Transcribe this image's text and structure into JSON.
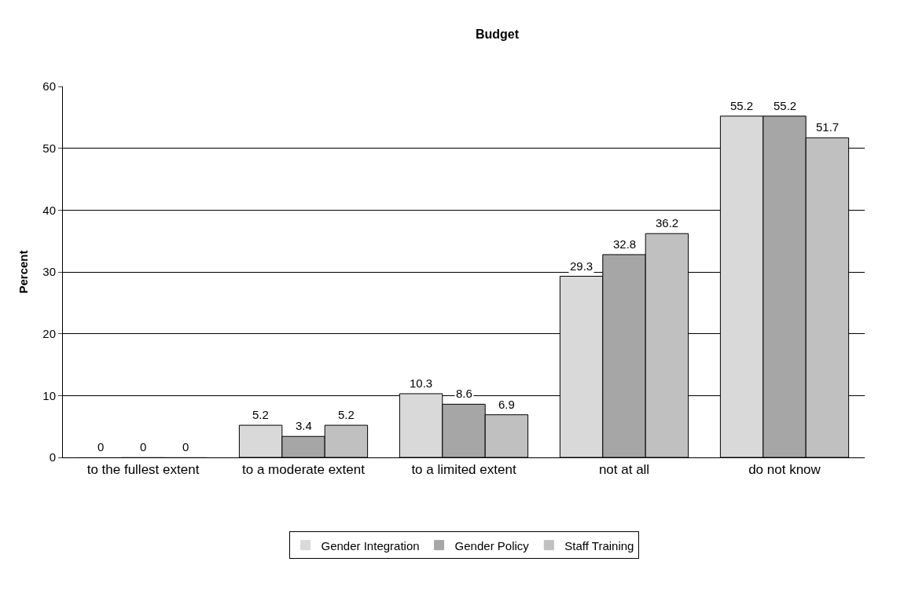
{
  "chart_data": {
    "type": "bar",
    "title": "Budget",
    "ylabel": "Percent",
    "categories": [
      "to the fullest extent",
      "to a moderate extent",
      "to a limited extent",
      "not at all",
      "do not know"
    ],
    "series": [
      {
        "name": "Gender Integration",
        "color": "#d9d9d9",
        "values": [
          0,
          5.2,
          10.3,
          29.3,
          55.2
        ]
      },
      {
        "name": "Gender Policy",
        "color": "#a6a6a6",
        "values": [
          0,
          3.4,
          8.6,
          32.8,
          55.2
        ]
      },
      {
        "name": "Staff Training",
        "color": "#c0c0c0",
        "values": [
          0,
          5.2,
          6.9,
          36.2,
          51.7
        ]
      }
    ],
    "ylim": [
      0,
      60
    ],
    "yticks": [
      0,
      10,
      20,
      30,
      40,
      50,
      60
    ],
    "grid": "y",
    "legend": "bottom",
    "data_labels": true
  }
}
